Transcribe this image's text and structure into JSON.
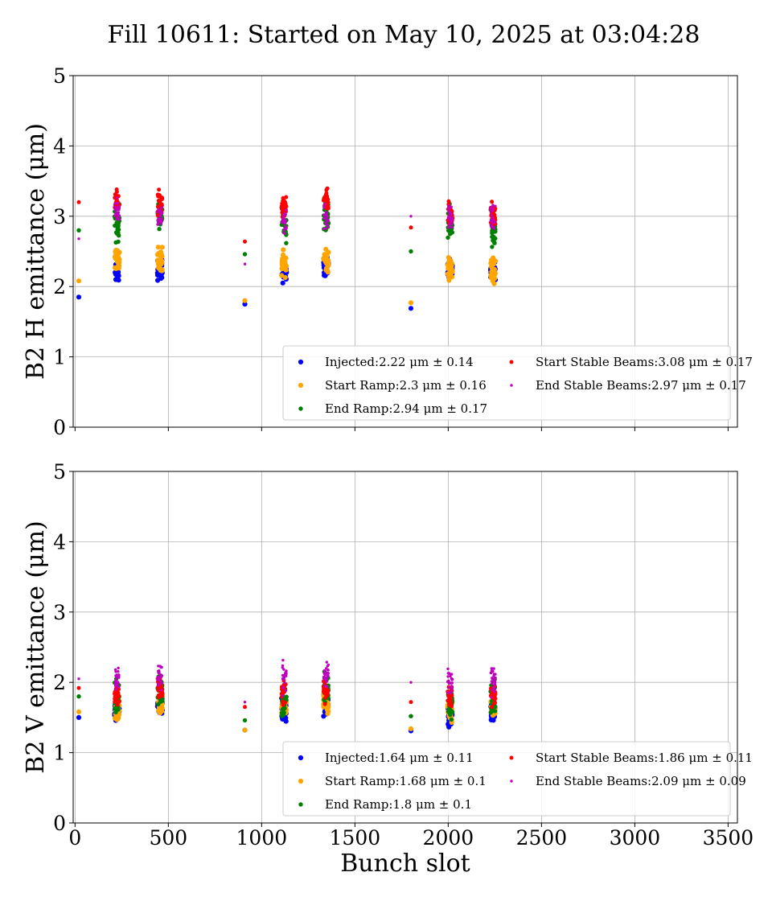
{
  "figure": {
    "title": "Fill 10611: Started on May 10, 2025 at 03:04:28"
  },
  "chart_data": [
    {
      "type": "scatter",
      "xlabel": "Bunch slot",
      "ylabel": "B2 H emittance (μm)",
      "xlim": [
        -10,
        3550
      ],
      "ylim": [
        0,
        5
      ],
      "x_ticks": [
        0,
        500,
        1000,
        1500,
        2000,
        2500,
        3000,
        3500
      ],
      "y_ticks": [
        0,
        1,
        2,
        3,
        4,
        5
      ],
      "grid": true,
      "legend_position": "lower-right",
      "clusters": [
        {
          "x": 20,
          "values": [
            1.85,
            2.08,
            2.8,
            3.2,
            2.68
          ]
        },
        {
          "x": 225,
          "values": [
            2.22,
            2.38,
            2.9,
            3.2,
            3.05
          ]
        },
        {
          "x": 455,
          "values": [
            2.25,
            2.4,
            3.0,
            3.2,
            3.02
          ]
        },
        {
          "x": 910,
          "values": [
            1.75,
            1.8,
            2.46,
            2.64,
            2.32
          ]
        },
        {
          "x": 1120,
          "values": [
            2.2,
            2.32,
            2.92,
            3.12,
            2.95
          ]
        },
        {
          "x": 1345,
          "values": [
            2.27,
            2.36,
            3.0,
            3.2,
            2.95
          ]
        },
        {
          "x": 1800,
          "values": [
            1.69,
            1.77,
            2.5,
            2.84,
            3.0
          ]
        },
        {
          "x": 2010,
          "values": [
            2.2,
            2.25,
            2.88,
            3.05,
            3.0
          ]
        },
        {
          "x": 2240,
          "values": [
            2.2,
            2.22,
            2.8,
            3.02,
            3.0
          ]
        }
      ],
      "series": [
        {
          "name": "Injected",
          "label": "Injected:2.22 μm ± 0.14",
          "color": "#0000ff",
          "mean": 2.22,
          "std": 0.14
        },
        {
          "name": "Start Ramp",
          "label": "Start Ramp:2.3 μm ± 0.16",
          "color": "#ffa500",
          "mean": 2.3,
          "std": 0.16
        },
        {
          "name": "End Ramp",
          "label": "End Ramp:2.94 μm ± 0.17",
          "color": "#008000",
          "mean": 2.94,
          "std": 0.17
        },
        {
          "name": "Start Stable Beams",
          "label": "Start Stable Beams:3.08 μm ± 0.17",
          "color": "#ff0000",
          "mean": 3.08,
          "std": 0.17
        },
        {
          "name": "End Stable Beams",
          "label": "End Stable Beams:2.97 μm ± 0.17",
          "color": "#bf00bf",
          "mean": 2.97,
          "std": 0.17
        }
      ]
    },
    {
      "type": "scatter",
      "xlabel": "Bunch slot",
      "ylabel": "B2 V emittance (μm)",
      "xlim": [
        -10,
        3550
      ],
      "ylim": [
        0,
        5
      ],
      "x_ticks": [
        0,
        500,
        1000,
        1500,
        2000,
        2500,
        3000,
        3500
      ],
      "y_ticks": [
        0,
        1,
        2,
        3,
        4,
        5
      ],
      "grid": true,
      "legend_position": "lower-right",
      "clusters": [
        {
          "x": 20,
          "values": [
            1.5,
            1.58,
            1.8,
            1.92,
            2.05
          ]
        },
        {
          "x": 225,
          "values": [
            1.6,
            1.65,
            1.78,
            1.85,
            2.05
          ]
        },
        {
          "x": 455,
          "values": [
            1.65,
            1.72,
            1.85,
            1.92,
            2.08
          ]
        },
        {
          "x": 910,
          "values": [
            1.32,
            1.32,
            1.46,
            1.65,
            1.72
          ]
        },
        {
          "x": 1120,
          "values": [
            1.6,
            1.65,
            1.75,
            1.85,
            2.05
          ]
        },
        {
          "x": 1345,
          "values": [
            1.7,
            1.72,
            1.85,
            1.9,
            2.1
          ]
        },
        {
          "x": 1800,
          "values": [
            1.31,
            1.34,
            1.52,
            1.72,
            2.0
          ]
        },
        {
          "x": 2010,
          "values": [
            1.55,
            1.6,
            1.75,
            1.8,
            2.02
          ]
        },
        {
          "x": 2240,
          "values": [
            1.58,
            1.62,
            1.75,
            1.8,
            2.02
          ]
        }
      ],
      "series": [
        {
          "name": "Injected",
          "label": "Injected:1.64 μm ± 0.11",
          "color": "#0000ff",
          "mean": 1.64,
          "std": 0.11
        },
        {
          "name": "Start Ramp",
          "label": "Start Ramp:1.68 μm ± 0.1",
          "color": "#ffa500",
          "mean": 1.68,
          "std": 0.1
        },
        {
          "name": "End Ramp",
          "label": "End Ramp:1.8 μm ± 0.1",
          "color": "#008000",
          "mean": 1.8,
          "std": 0.1
        },
        {
          "name": "Start Stable Beams",
          "label": "Start Stable Beams:1.86 μm ± 0.11",
          "color": "#ff0000",
          "mean": 1.86,
          "std": 0.11
        },
        {
          "name": "End Stable Beams",
          "label": "End Stable Beams:2.09 μm ± 0.09",
          "color": "#bf00bf",
          "mean": 2.09,
          "std": 0.09
        }
      ]
    }
  ]
}
